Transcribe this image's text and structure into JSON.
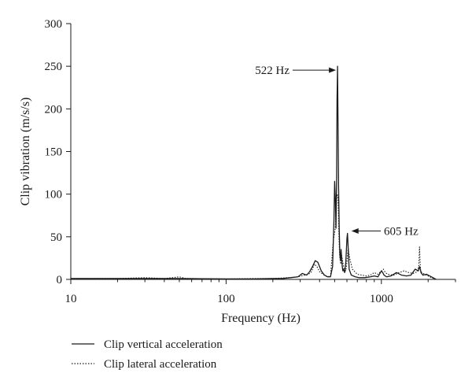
{
  "chart_data": {
    "type": "line",
    "xscale": "log",
    "xlim": [
      10,
      3000
    ],
    "ylim": [
      0,
      300
    ],
    "xlabel": "Frequency (Hz)",
    "ylabel": "Clip vibration (m/s/s)",
    "xticks": [
      10,
      100,
      1000
    ],
    "xtick_labels": [
      "10",
      "100",
      "1000"
    ],
    "yticks": [
      0,
      50,
      100,
      150,
      200,
      250,
      300
    ],
    "ytick_labels": [
      "0",
      "50",
      "100",
      "150",
      "200",
      "250",
      "300"
    ],
    "grid": false,
    "legend_position": "bottom-left, below plot",
    "series": [
      {
        "name": "Clip vertical acceleration",
        "style": "solid",
        "color": "#1a1a1a",
        "x": [
          10,
          20,
          50,
          100,
          150,
          200,
          230,
          260,
          290,
          310,
          330,
          345,
          360,
          375,
          390,
          410,
          430,
          450,
          470,
          485,
          495,
          500,
          505,
          510,
          515,
          518,
          522,
          526,
          530,
          535,
          540,
          545,
          550,
          555,
          560,
          565,
          570,
          575,
          580,
          590,
          600,
          605,
          612,
          620,
          640,
          680,
          720,
          780,
          850,
          900,
          950,
          1000,
          1020,
          1040,
          1080,
          1150,
          1250,
          1350,
          1450,
          1550,
          1650,
          1730,
          1760,
          1780,
          1800,
          1850,
          1950,
          2050,
          2150,
          2250
        ],
        "y": [
          1,
          1,
          1,
          0.5,
          0.5,
          1,
          1,
          2,
          3,
          7,
          5,
          9,
          15,
          22,
          20,
          10,
          5,
          3,
          3,
          15,
          70,
          115,
          95,
          60,
          120,
          210,
          250,
          180,
          110,
          60,
          30,
          22,
          35,
          25,
          15,
          10,
          12,
          10,
          8,
          20,
          48,
          54,
          35,
          12,
          5,
          3,
          2,
          2,
          3,
          4,
          3,
          10,
          8,
          5,
          3,
          4,
          8,
          5,
          4,
          5,
          12,
          10,
          15,
          12,
          8,
          5,
          6,
          4,
          2,
          0
        ]
      },
      {
        "name": "Clip lateral acceleration",
        "style": "dotted",
        "color": "#1a1a1a",
        "x": [
          10,
          20,
          30,
          40,
          50,
          55,
          60,
          100,
          150,
          200,
          250,
          290,
          320,
          340,
          355,
          370,
          385,
          400,
          420,
          440,
          470,
          490,
          505,
          515,
          520,
          525,
          530,
          535,
          540,
          548,
          555,
          565,
          575,
          590,
          600,
          610,
          625,
          650,
          700,
          750,
          800,
          850,
          900,
          950,
          1000,
          1030,
          1060,
          1100,
          1200,
          1300,
          1400,
          1500,
          1600,
          1700,
          1740,
          1760,
          1775,
          1790,
          1820,
          1900,
          2000,
          2100,
          2250
        ],
        "y": [
          1,
          1,
          2,
          1,
          3,
          1,
          1,
          0.5,
          1,
          1,
          2,
          3,
          5,
          6,
          9,
          18,
          15,
          9,
          6,
          4,
          3,
          45,
          60,
          95,
          100,
          95,
          70,
          40,
          25,
          18,
          28,
          20,
          12,
          10,
          20,
          36,
          25,
          12,
          6,
          5,
          4,
          5,
          8,
          6,
          10,
          12,
          8,
          6,
          5,
          8,
          10,
          8,
          7,
          9,
          15,
          38,
          20,
          10,
          8,
          6,
          4,
          2,
          0
        ]
      }
    ],
    "annotations": [
      {
        "text": "522 Hz",
        "x": 522,
        "y": 250,
        "arrow": "points right to peak"
      },
      {
        "text": "605 Hz",
        "x": 605,
        "y": 54,
        "arrow": "points left to peak"
      }
    ],
    "legend": [
      {
        "label": "Clip vertical acceleration",
        "style": "solid"
      },
      {
        "label": "Clip lateral acceleration",
        "style": "dotted"
      }
    ]
  }
}
